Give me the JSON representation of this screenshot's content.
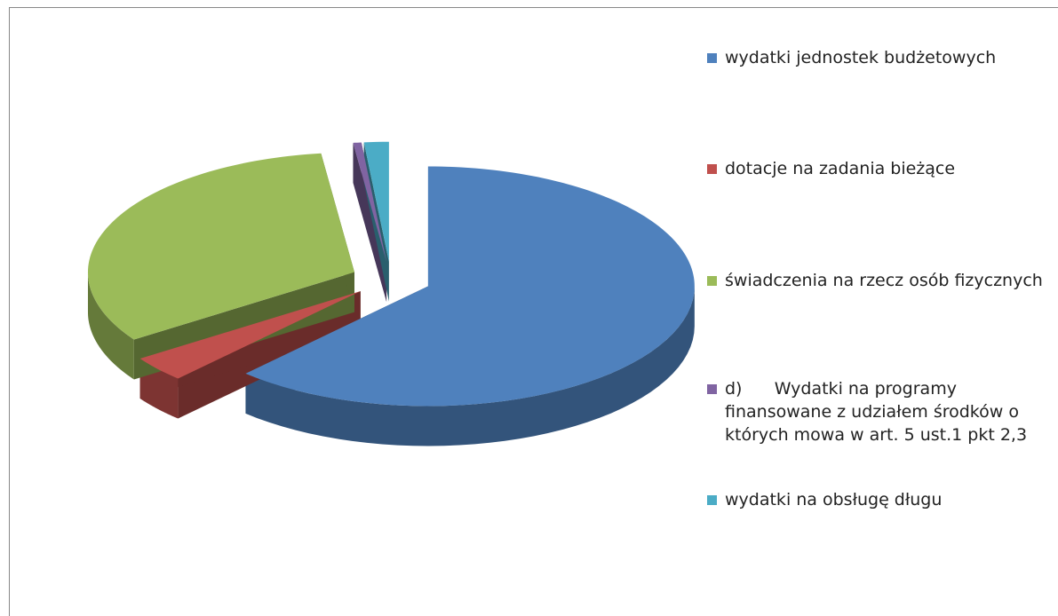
{
  "chart_data": {
    "type": "pie3d",
    "categories": [
      "wydatki jednostek budżetowych",
      "dotacje na zadania bieżące",
      "świadczenia na rzecz osób fizycznych",
      "d)      Wydatki na programy finansowane z udziałem środków o których mowa w art. 5 ust.1 pkt 2,3",
      "wydatki na obsługę długu"
    ],
    "values": [
      62,
      3.5,
      32.5,
      0.5,
      1.5
    ],
    "colors": [
      "#4f81bd",
      "#c0504d",
      "#9bbb59",
      "#8064a2",
      "#4bacc6"
    ],
    "legend": "right"
  }
}
